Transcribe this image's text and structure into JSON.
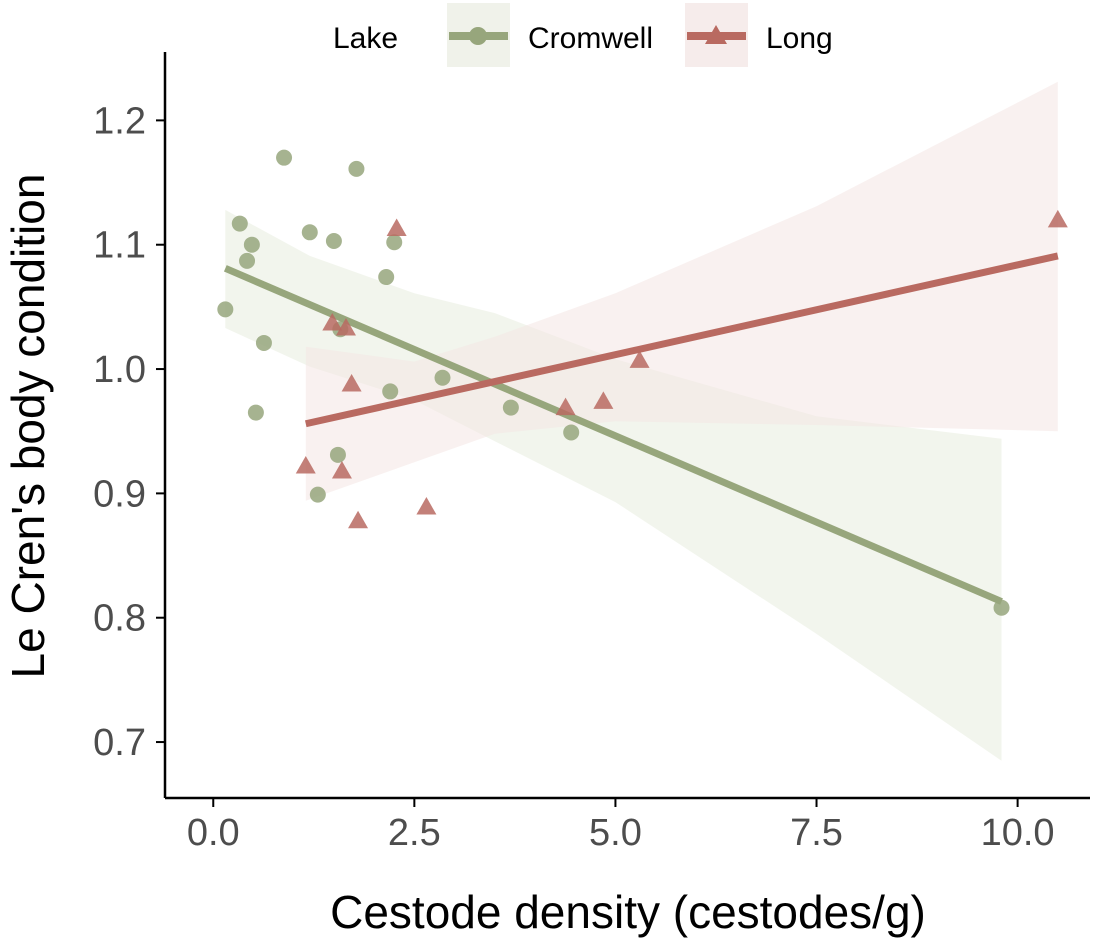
{
  "chart_data": {
    "type": "scatter",
    "title": "",
    "xlabel": "Cestode density (cestodes/g)",
    "ylabel": "Le Cren's body condition",
    "xlim": [
      -0.6,
      10.9
    ],
    "ylim": [
      0.655,
      1.255
    ],
    "xticks": [
      0.0,
      2.5,
      5.0,
      7.5,
      10.0
    ],
    "xtick_labels": [
      "0.0",
      "2.5",
      "5.0",
      "7.5",
      "10.0"
    ],
    "yticks": [
      0.7,
      0.8,
      0.9,
      1.0,
      1.1,
      1.2
    ],
    "ytick_labels": [
      "0.7",
      "0.8",
      "0.9",
      "1.0",
      "1.1",
      "1.2"
    ],
    "grid": false,
    "legend": {
      "title": "Lake",
      "position": "top"
    },
    "series": [
      {
        "name": "Cromwell",
        "marker": "circle",
        "color": "#97a67c",
        "x": [
          0.15,
          0.33,
          0.42,
          0.48,
          0.53,
          0.63,
          0.88,
          1.2,
          1.3,
          1.5,
          1.55,
          1.58,
          1.78,
          2.15,
          2.2,
          2.25,
          2.85,
          3.7,
          4.45,
          9.8
        ],
        "y": [
          1.048,
          1.117,
          1.087,
          1.1,
          0.965,
          1.021,
          1.17,
          1.11,
          0.899,
          1.103,
          0.931,
          1.032,
          1.161,
          1.074,
          0.982,
          1.102,
          0.993,
          0.969,
          0.949,
          0.808
        ],
        "fit": {
          "x": [
            0.15,
            9.8
          ],
          "y": [
            1.081,
            0.813
          ]
        },
        "ci": {
          "x": [
            0.15,
            1.2,
            2.5,
            3.5,
            5.0,
            7.5,
            9.8
          ],
          "lower": [
            1.033,
            1.002,
            0.975,
            0.942,
            0.893,
            0.787,
            0.685
          ],
          "upper": [
            1.128,
            1.091,
            1.061,
            1.045,
            1.008,
            0.962,
            0.944
          ]
        }
      },
      {
        "name": "Long",
        "marker": "triangle",
        "color": "#b96a61",
        "x": [
          1.15,
          1.48,
          1.6,
          1.65,
          1.72,
          1.8,
          2.28,
          2.65,
          4.38,
          4.85,
          5.3,
          10.5
        ],
        "y": [
          0.922,
          1.037,
          0.918,
          1.033,
          0.988,
          0.878,
          1.113,
          0.889,
          0.969,
          0.974,
          1.007,
          1.12
        ],
        "fit": {
          "x": [
            1.15,
            10.5
          ],
          "y": [
            0.956,
            1.091
          ]
        },
        "ci": {
          "x": [
            1.15,
            2.5,
            3.5,
            5.0,
            7.5,
            10.5
          ],
          "lower": [
            0.894,
            0.925,
            0.948,
            0.958,
            0.955,
            0.95
          ],
          "upper": [
            1.018,
            1.006,
            1.026,
            1.061,
            1.131,
            1.231
          ]
        }
      }
    ]
  }
}
